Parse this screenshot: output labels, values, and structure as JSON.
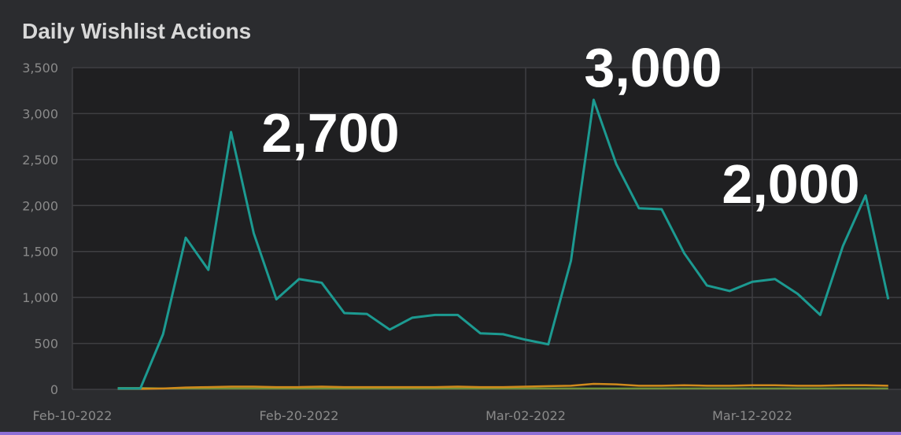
{
  "chart_data": {
    "type": "line",
    "title": "Daily Wishlist Actions",
    "ylim": [
      0,
      3500
    ],
    "y_ticks": [
      "0",
      "500",
      "1,000",
      "1,500",
      "2,000",
      "2,500",
      "3,000",
      "3,500"
    ],
    "x_ticks": [
      "Feb-10-2022",
      "Feb-20-2022",
      "Mar-02-2022",
      "Mar-12-2022"
    ],
    "grid": true,
    "colors": {
      "background": "#2b2c2f",
      "plot_bg": "#1f1f21",
      "grid": "#3f3f42",
      "series_main": "#1c9a91",
      "series_minor_1": "#d08a1c",
      "series_minor_2": "#6f8f3a"
    },
    "x": [
      "Feb-12-2022",
      "Feb-13-2022",
      "Feb-14-2022",
      "Feb-15-2022",
      "Feb-16-2022",
      "Feb-17-2022",
      "Feb-18-2022",
      "Feb-19-2022",
      "Feb-20-2022",
      "Feb-21-2022",
      "Feb-22-2022",
      "Feb-23-2022",
      "Feb-24-2022",
      "Feb-25-2022",
      "Feb-26-2022",
      "Feb-27-2022",
      "Feb-28-2022",
      "Mar-01-2022",
      "Mar-02-2022",
      "Mar-03-2022",
      "Mar-04-2022",
      "Mar-05-2022",
      "Mar-06-2022",
      "Mar-07-2022",
      "Mar-08-2022",
      "Mar-09-2022",
      "Mar-10-2022",
      "Mar-11-2022",
      "Mar-12-2022",
      "Mar-13-2022",
      "Mar-14-2022",
      "Mar-15-2022",
      "Mar-16-2022",
      "Mar-17-2022",
      "Mar-18-2022"
    ],
    "series": [
      {
        "values": [
          10,
          10,
          600,
          1650,
          1300,
          2800,
          1700,
          980,
          1200,
          1160,
          830,
          820,
          650,
          780,
          810,
          810,
          610,
          600,
          540,
          490,
          1400,
          3150,
          2450,
          1970,
          1960,
          1480,
          1130,
          1070,
          1170,
          1200,
          1040,
          810,
          1560,
          2110,
          980
        ]
      },
      {
        "values": [
          5,
          5,
          10,
          20,
          25,
          30,
          30,
          25,
          25,
          30,
          25,
          25,
          25,
          25,
          25,
          30,
          25,
          25,
          30,
          35,
          40,
          60,
          55,
          40,
          40,
          45,
          40,
          40,
          45,
          45,
          40,
          40,
          45,
          45,
          40
        ]
      },
      {
        "values": [
          15,
          15,
          10,
          10,
          10,
          10,
          10,
          10,
          10,
          10,
          10,
          10,
          10,
          10,
          10,
          10,
          10,
          10,
          10,
          10,
          10,
          10,
          10,
          10,
          10,
          10,
          10,
          10,
          10,
          10,
          10,
          10,
          10,
          10,
          10
        ]
      }
    ],
    "annotations": [
      "2,700",
      "3,000",
      "2,000"
    ]
  }
}
